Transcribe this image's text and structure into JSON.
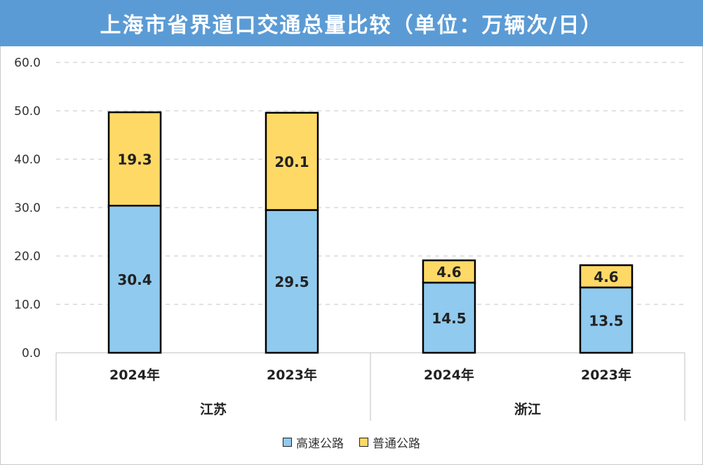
{
  "title": "上海市省界道口交通总量比较（单位：万辆次/日）",
  "colors": {
    "title_bar": "#5b9bd5",
    "expressway": "#90caee",
    "ordinary": "#ffd966",
    "bar_outline": "#000000",
    "gridline": "#d0d0d0"
  },
  "legend": [
    {
      "label": "高速公路",
      "color": "#90caee"
    },
    {
      "label": "普通公路",
      "color": "#ffd966"
    }
  ],
  "chart_data": {
    "type": "bar",
    "stacked": true,
    "title": "上海市省界道口交通总量比较（单位：万辆次/日）",
    "groups": [
      {
        "label": "江苏",
        "categories": [
          "2024年",
          "2023年"
        ]
      },
      {
        "label": "浙江",
        "categories": [
          "2024年",
          "2023年"
        ]
      }
    ],
    "categories": [
      "2024年",
      "2023年",
      "2024年",
      "2023年"
    ],
    "series": [
      {
        "name": "高速公路",
        "values": [
          30.4,
          29.5,
          14.5,
          13.5
        ]
      },
      {
        "name": "普通公路",
        "values": [
          19.3,
          20.1,
          4.6,
          4.6
        ]
      }
    ],
    "ylim": [
      0,
      60
    ],
    "yticks": [
      "0.0",
      "10.0",
      "20.0",
      "30.0",
      "40.0",
      "50.0",
      "60.0"
    ],
    "grid": true,
    "legend_position": "bottom"
  }
}
